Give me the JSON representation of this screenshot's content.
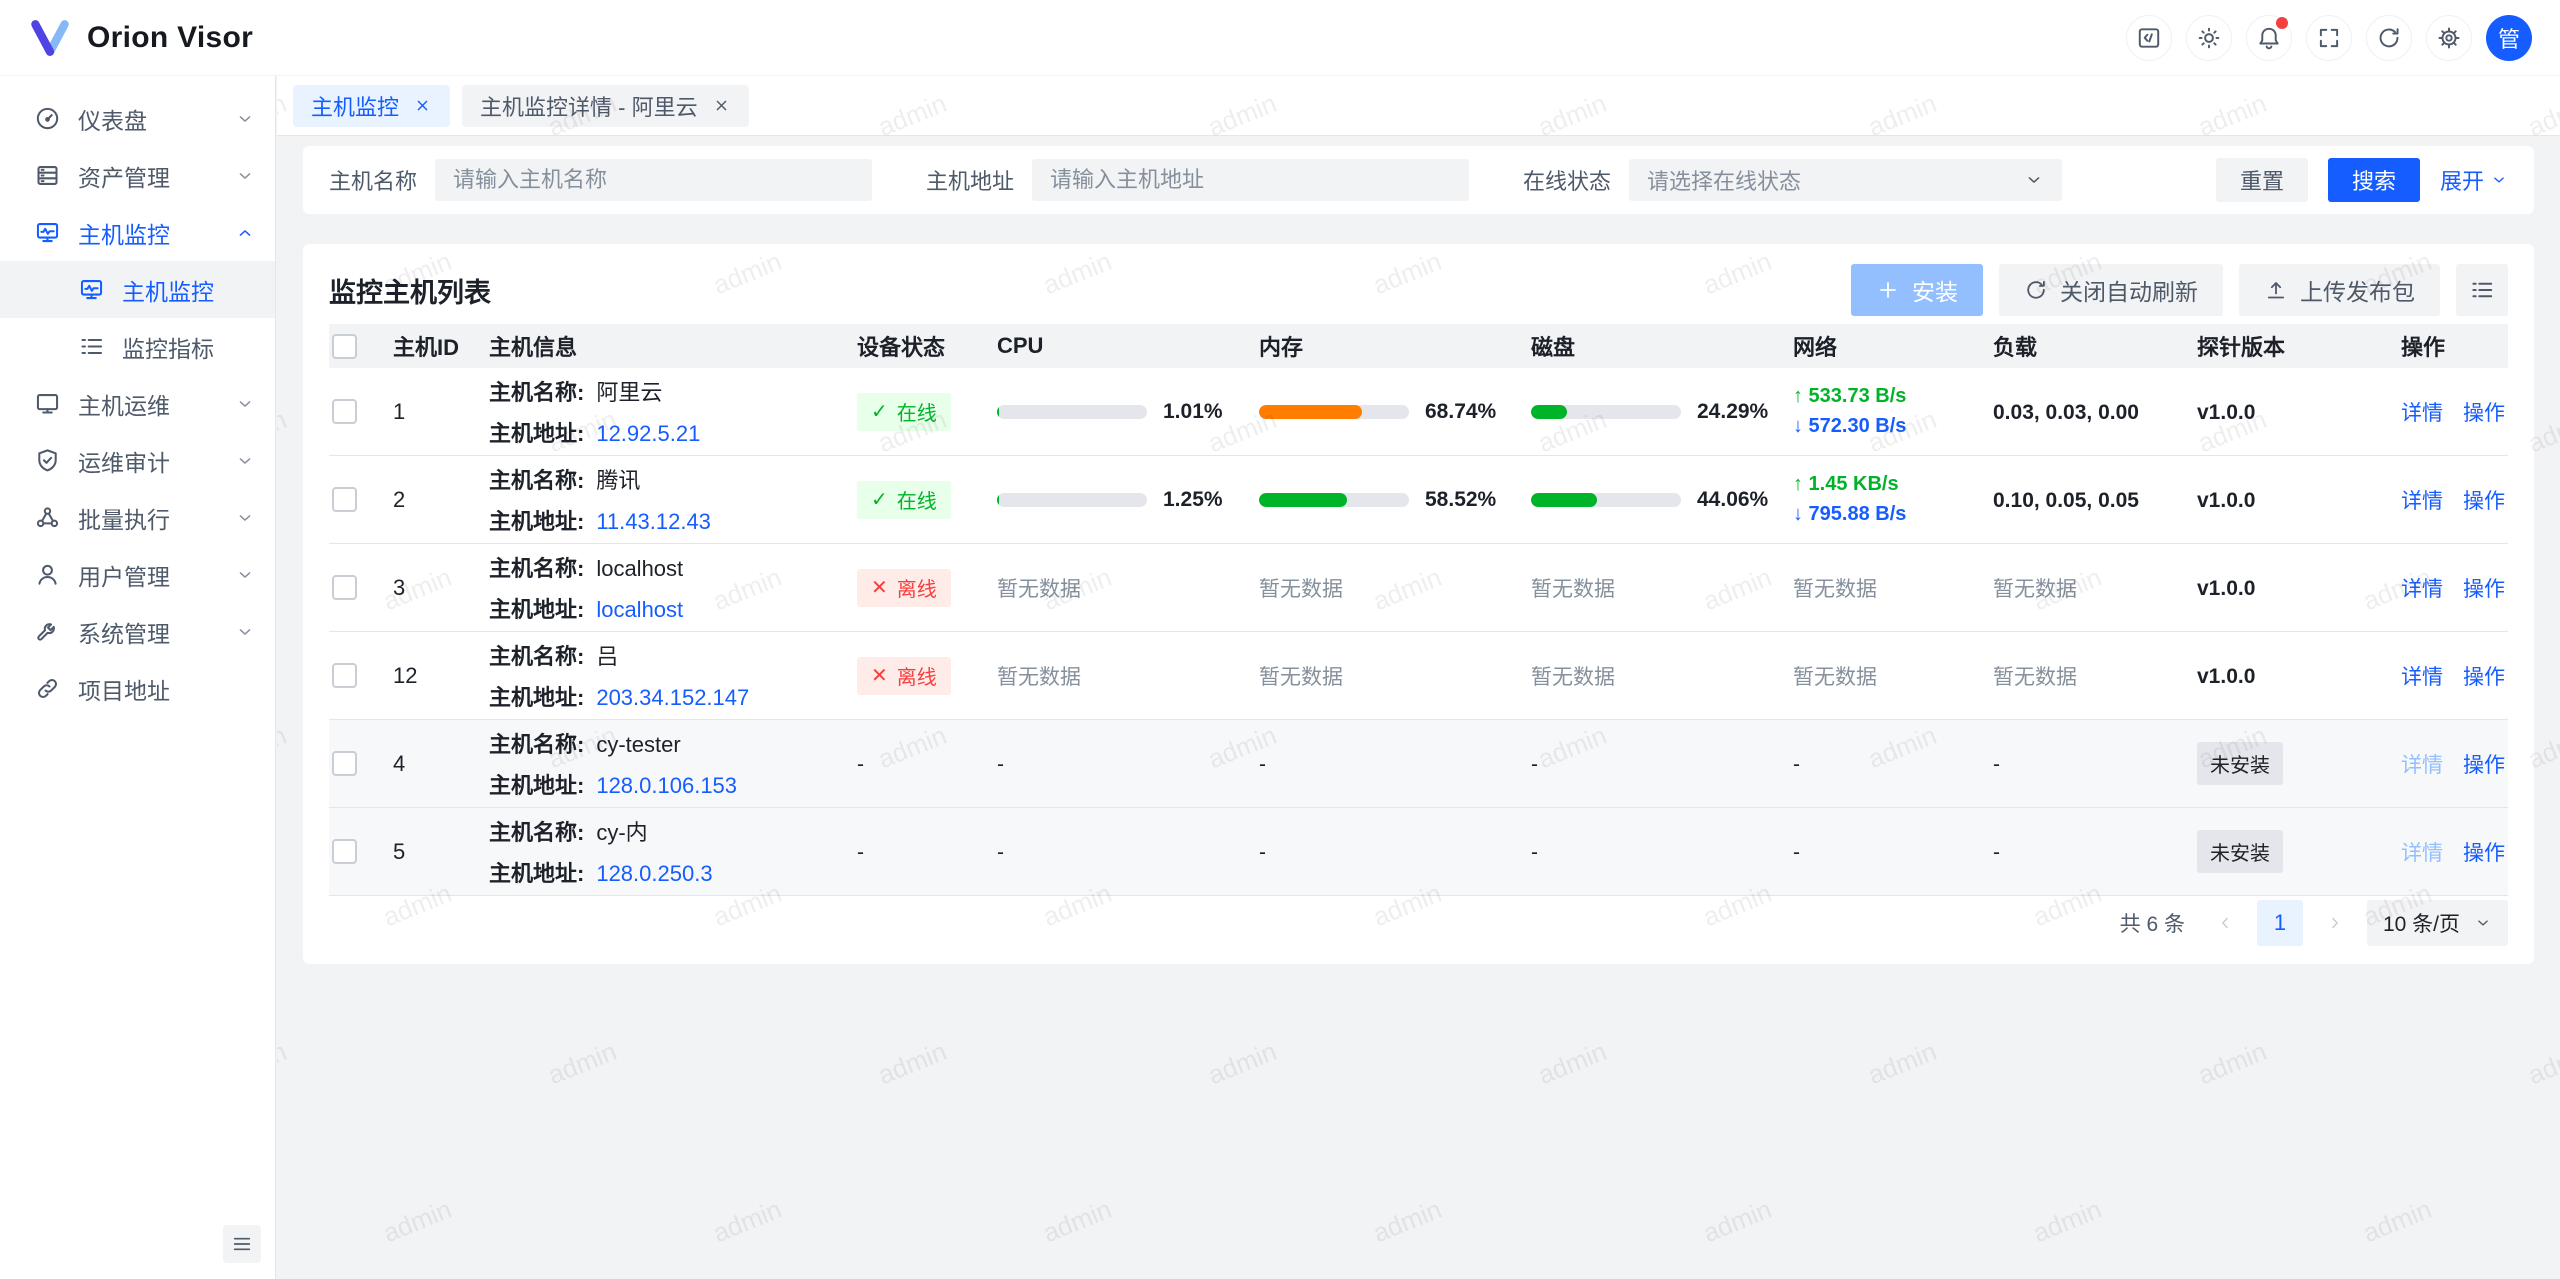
{
  "app": {
    "title": "Orion Visor"
  },
  "header": {
    "actions": [
      {
        "icon": "code-icon"
      },
      {
        "icon": "theme-icon"
      },
      {
        "icon": "bell-icon",
        "badge": true
      },
      {
        "icon": "fullscreen-icon"
      },
      {
        "icon": "refresh-icon"
      },
      {
        "icon": "settings-icon"
      }
    ],
    "avatar_text": "管"
  },
  "sidebar": {
    "items": [
      {
        "key": "dashboard",
        "label": "仪表盘",
        "icon": "dashboard-icon",
        "chevron": "down"
      },
      {
        "key": "asset-management",
        "label": "资产管理",
        "icon": "assets-icon",
        "chevron": "down"
      },
      {
        "key": "host-monitor",
        "label": "主机监控",
        "icon": "monitor-chart-icon",
        "chevron": "up",
        "open": true
      },
      {
        "key": "host-monitor-child",
        "label": "主机监控",
        "icon": "monitor-chart-icon",
        "sub": true,
        "selected": true
      },
      {
        "key": "monitor-metrics",
        "label": "监控指标",
        "icon": "list-icon",
        "sub": true
      },
      {
        "key": "host-ops",
        "label": "主机运维",
        "icon": "monitor-icon",
        "chevron": "down"
      },
      {
        "key": "ops-audit",
        "label": "运维审计",
        "icon": "shield-icon",
        "chevron": "down"
      },
      {
        "key": "batch-exec",
        "label": "批量执行",
        "icon": "cluster-icon",
        "chevron": "down"
      },
      {
        "key": "user-management",
        "label": "用户管理",
        "icon": "user-icon",
        "chevron": "down"
      },
      {
        "key": "system-management",
        "label": "系统管理",
        "icon": "wrench-icon",
        "chevron": "down"
      },
      {
        "key": "project-link",
        "label": "项目地址",
        "icon": "link-icon"
      }
    ]
  },
  "tabs": [
    {
      "key": "host-monitor",
      "label": "主机监控",
      "active": true
    },
    {
      "key": "host-monitor-detail",
      "label": "主机监控详情 - 阿里云",
      "active": false
    }
  ],
  "filters": {
    "fields": [
      {
        "key": "host-name",
        "label": "主机名称",
        "placeholder": "请输入主机名称",
        "type": "input"
      },
      {
        "key": "host-address",
        "label": "主机地址",
        "placeholder": "请输入主机地址",
        "type": "input"
      },
      {
        "key": "online-status",
        "label": "在线状态",
        "placeholder": "请选择在线状态",
        "type": "select"
      }
    ],
    "reset_label": "重置",
    "search_label": "搜索",
    "expand_label": "展开"
  },
  "panel": {
    "title": "监控主机列表",
    "install_label": "安装",
    "refresh_label": "关闭自动刷新",
    "upload_label": "上传发布包"
  },
  "table": {
    "columns": [
      "主机ID",
      "主机信息",
      "设备状态",
      "CPU",
      "内存",
      "磁盘",
      "网络",
      "负载",
      "探针版本",
      "操作"
    ],
    "labels": {
      "host_name": "主机名称:",
      "host_addr": "主机地址:",
      "online": "在线",
      "offline": "离线",
      "no_data": "暂无数据",
      "empty": "-",
      "not_installed": "未安装",
      "detail": "详情",
      "action": "操作"
    },
    "rows": [
      {
        "id": "1",
        "name": "阿里云",
        "addr": "12.92.5.21",
        "status": "online",
        "cpu": {
          "pct": 1.01,
          "label": "1.01%",
          "color": "#00b42a"
        },
        "mem": {
          "pct": 68.74,
          "label": "68.74%",
          "color": "#ff7d00"
        },
        "disk": {
          "pct": 24.29,
          "label": "24.29%",
          "color": "#00b42a"
        },
        "net_up": "533.73 B/s",
        "net_down": "572.30 B/s",
        "load": "0.03, 0.03, 0.00",
        "version": "v1.0.0"
      },
      {
        "id": "2",
        "name": "腾讯",
        "addr": "11.43.12.43",
        "status": "online",
        "cpu": {
          "pct": 1.25,
          "label": "1.25%",
          "color": "#00b42a"
        },
        "mem": {
          "pct": 58.52,
          "label": "58.52%",
          "color": "#00b42a"
        },
        "disk": {
          "pct": 44.06,
          "label": "44.06%",
          "color": "#00b42a"
        },
        "net_up": "1.45 KB/s",
        "net_down": "795.88 B/s",
        "load": "0.10, 0.05, 0.05",
        "version": "v1.0.0"
      },
      {
        "id": "3",
        "name": "localhost",
        "addr": "localhost",
        "status": "offline",
        "no_data": true,
        "version": "v1.0.0"
      },
      {
        "id": "12",
        "name": "吕",
        "addr": "203.34.152.147",
        "status": "offline",
        "no_data": true,
        "version": "v1.0.0"
      },
      {
        "id": "4",
        "name": "cy-tester",
        "addr": "128.0.106.153",
        "status": "none",
        "empty": true,
        "version": "未安装",
        "not_installed": true,
        "shaded": true
      },
      {
        "id": "5",
        "name": "cy-内",
        "addr": "128.0.250.3",
        "status": "none",
        "empty": true,
        "version": "未安装",
        "not_installed": true,
        "shaded": true
      }
    ]
  },
  "pagination": {
    "total": "共 6 条",
    "current_page": "1",
    "page_size": "10 条/页"
  },
  "watermark": "admin",
  "colors": {
    "primary": "#165dff",
    "success": "#00b42a",
    "danger": "#f53f3f",
    "warning": "#ff7d00"
  }
}
